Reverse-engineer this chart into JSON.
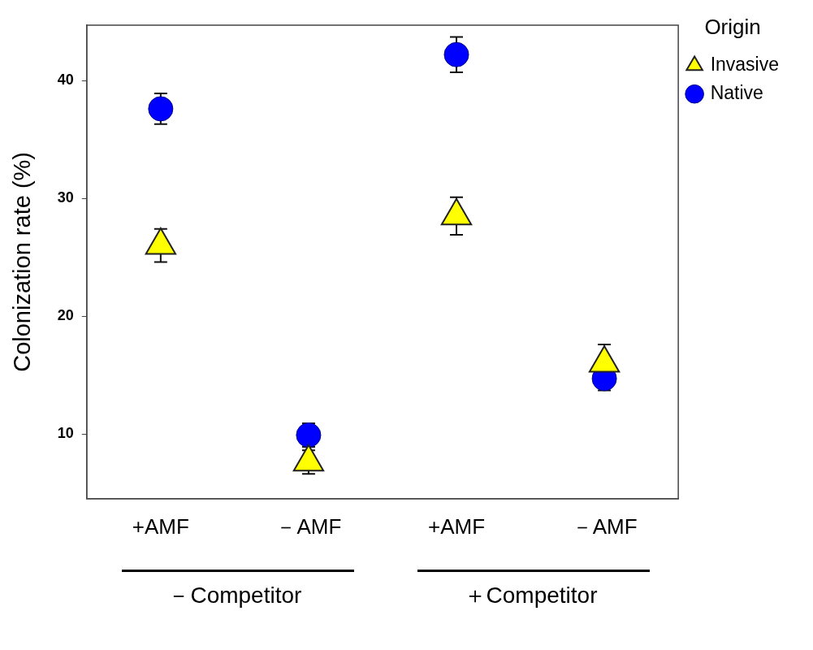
{
  "chart_data": {
    "type": "scatter",
    "ylabel": "Colonization rate (%)",
    "legend_title": "Origin",
    "legend": "top right",
    "grid": false,
    "categories": [
      "+AMF",
      "－AMF",
      "+AMF",
      "－AMF"
    ],
    "ylim": [
      4.5,
      44.7
    ],
    "yticks": [
      10,
      20,
      30,
      40
    ],
    "annotations": [
      "－Competitor",
      "＋Competitor"
    ],
    "series": [
      {
        "name": "Invasive",
        "marker": "triangle",
        "color": "#ffff00",
        "values": [
          26.0,
          7.6,
          28.5,
          16.0
        ],
        "errors": [
          1.4,
          1.0,
          1.6,
          1.6
        ]
      },
      {
        "name": "Native",
        "marker": "circle",
        "color": "#0000ff",
        "values": [
          37.6,
          9.9,
          42.2,
          14.7
        ],
        "errors": [
          1.3,
          1.0,
          1.5,
          1.0
        ]
      }
    ]
  }
}
